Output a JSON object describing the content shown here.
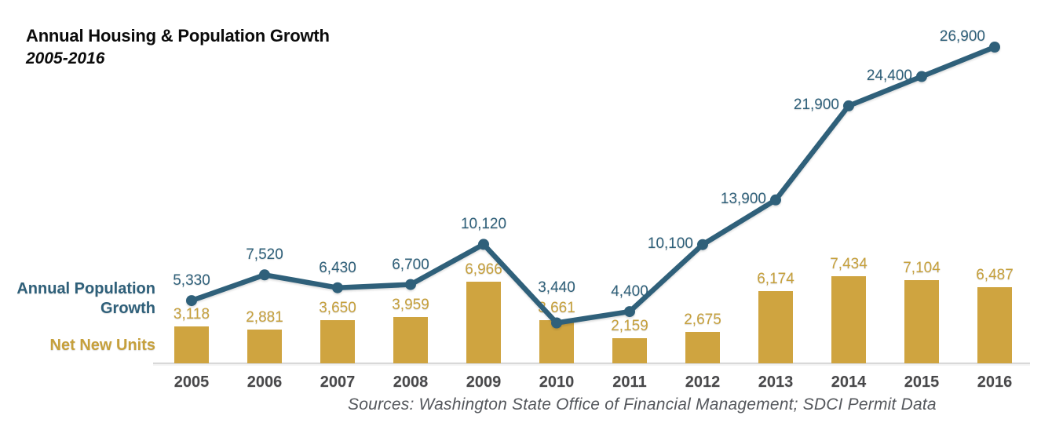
{
  "header": {
    "title": "Annual Housing & Population Growth",
    "subtitle": "2005-2016"
  },
  "footer": {
    "source": "Sources: Washington State Office of Financial Management; SDCI Permit Data"
  },
  "chart_data": {
    "type": "combo",
    "categories": [
      "2005",
      "2006",
      "2007",
      "2008",
      "2009",
      "2010",
      "2011",
      "2012",
      "2013",
      "2014",
      "2015",
      "2016"
    ],
    "series": [
      {
        "name": "Annual Population Growth",
        "type": "line",
        "color": "#2F607A",
        "values": [
          5330,
          7520,
          6430,
          6700,
          10120,
          3440,
          4400,
          10100,
          13900,
          21900,
          24400,
          26900
        ],
        "labels": [
          "5,330",
          "7,520",
          "6,430",
          "6,700",
          "10,120",
          "3,440",
          "4,400",
          "10,100",
          "13,900",
          "21,900",
          "24,400",
          "26,900"
        ]
      },
      {
        "name": "Net New Units",
        "type": "bar",
        "color": "#CFA440",
        "label_color": "#C6A03C",
        "values": [
          3118,
          2881,
          3650,
          3959,
          6966,
          3661,
          2159,
          2675,
          6174,
          7434,
          7104,
          6487
        ],
        "labels": [
          "3,118",
          "2,881",
          "3,650",
          "3,959",
          "6,966",
          "3,661",
          "2,159",
          "2,675",
          "6,174",
          "7,434",
          "7,104",
          "6,487"
        ]
      }
    ],
    "ylim": [
      0,
      27000
    ],
    "grid": false,
    "axis_color": "#d8d8d8",
    "year_label_color": "#48484A",
    "legend_position": "left",
    "line_label_placement": [
      "above",
      "above",
      "above",
      "above",
      "above",
      "above",
      "above",
      "left",
      "left",
      "left",
      "left",
      "left-up"
    ]
  }
}
